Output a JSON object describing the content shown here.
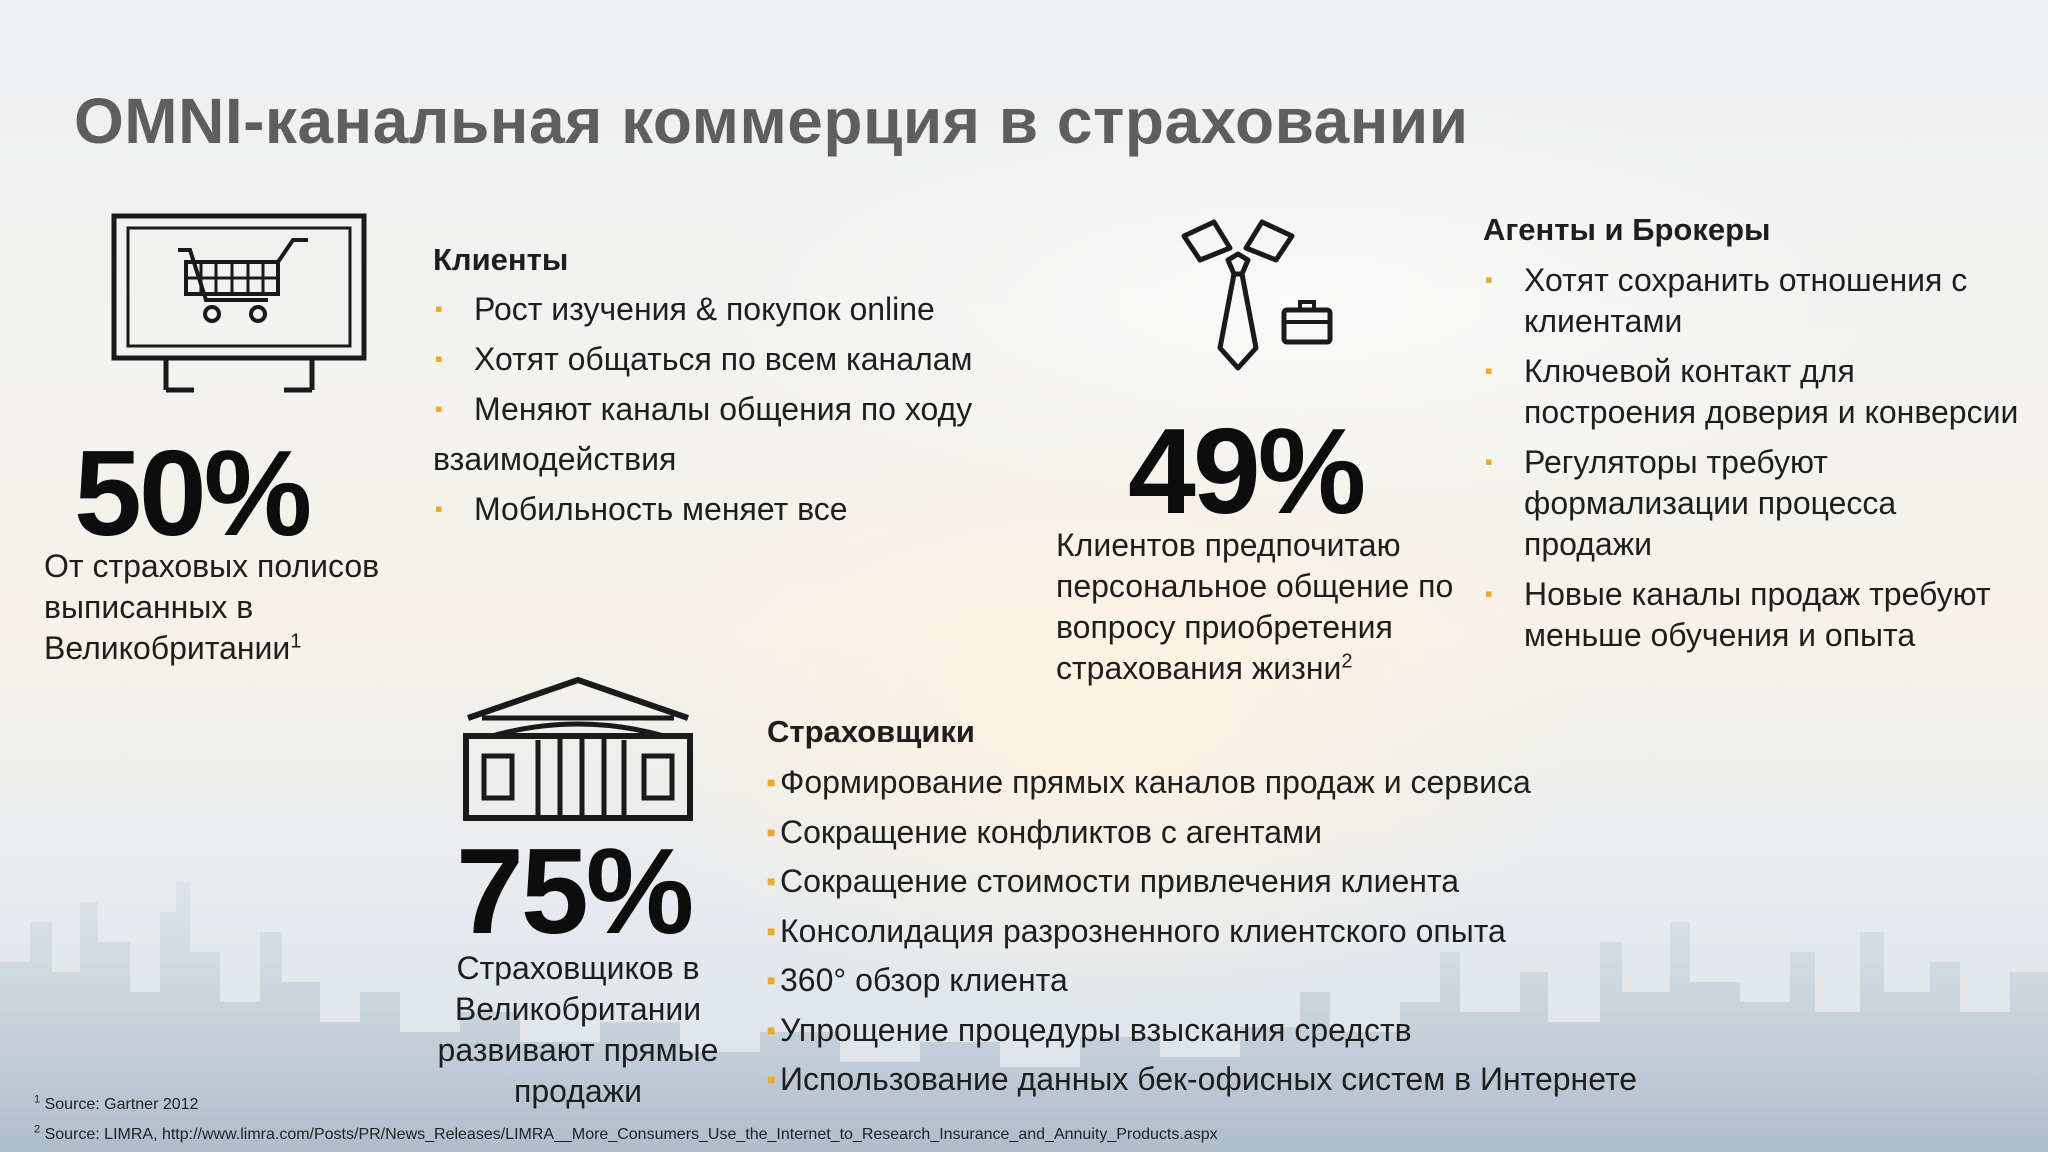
{
  "title": "OMNI-канальная коммерция в страховании",
  "colors": {
    "bullet": "#f0a81c",
    "title": "#5e5e5e",
    "stat": "#0d0d0d"
  },
  "stats": {
    "clients_stat": {
      "value": "50%",
      "lines": [
        "От страховых полисов",
        "выписанных в",
        "Великобритании"
      ],
      "footnote_ref": "1",
      "icon": "computer-shopping-cart-icon"
    },
    "agents_stat": {
      "value": "49%",
      "lines": [
        "Клиентов предпочитаю",
        "персональное общение по",
        "вопросу приобретения",
        "страхования жизни"
      ],
      "footnote_ref": "2",
      "icon": "tie-briefcase-icon"
    },
    "insurers_stat": {
      "value": "75%",
      "lines": [
        "Страховщиков в",
        "Великобритании",
        "развивают прямые",
        "продажи"
      ],
      "icon": "building-icon"
    }
  },
  "clients": {
    "heading": "Клиенты",
    "items": [
      "Рост изучения & покупок online",
      "Хотят общаться по всем каналам",
      "Меняют каналы общения по ходу",
      "взаимодействия",
      "Мобильность меняет все"
    ]
  },
  "agents": {
    "heading": "Агенты и Брокеры",
    "items": [
      "Хотят сохранить отношения с клиентами",
      "Ключевой контакт для построения доверия и конверсии",
      "Регуляторы требуют формализации процесса продажи",
      "Новые каналы продаж требуют меньше обучения и опыта"
    ]
  },
  "insurers": {
    "heading": "Страховщики",
    "items": [
      "Формирование прямых каналов продаж и сервиса",
      "Сокращение конфликтов с агентами",
      "Сокращение стоимости привлечения клиента",
      "Консолидация разрозненного клиентского опыта",
      "360° обзор клиента",
      "Упрощение процедуры взыскания средств",
      "Использование данных бек-офисных систем в Интернете"
    ]
  },
  "footnotes": [
    {
      "num": "1",
      "text": "Source: Gartner 2012"
    },
    {
      "num": "2",
      "text": "Source: LIMRA, http://www.limra.com/Posts/PR/News_Releases/LIMRA__More_Consumers_Use_the_Internet_to_Research_Insurance_and_Annuity_Products.aspx"
    }
  ]
}
